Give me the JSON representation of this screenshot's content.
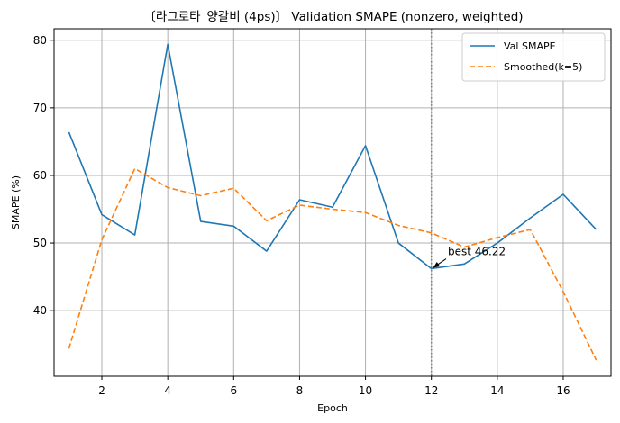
{
  "chart_data": {
    "type": "line",
    "title": "〔라그로타_양갈비 (4ps)〕 Validation SMAPE (nonzero, weighted)",
    "xlabel": "Epoch",
    "ylabel": "SMAPE (%)",
    "xlim": [
      0.55,
      17.45
    ],
    "ylim": [
      30.3,
      81.7
    ],
    "xticks": [
      2,
      4,
      6,
      8,
      10,
      12,
      14,
      16
    ],
    "yticks": [
      40,
      50,
      60,
      70,
      80
    ],
    "grid": true,
    "legend_position": "top-right",
    "x": [
      1,
      2,
      3,
      4,
      5,
      6,
      7,
      8,
      9,
      10,
      11,
      12,
      13,
      14,
      15,
      16,
      17
    ],
    "series": [
      {
        "name": "Val SMAPE",
        "style": "solid",
        "color": "#1f77b4",
        "values": [
          66.4,
          54.2,
          51.2,
          79.4,
          53.2,
          52.5,
          48.8,
          56.4,
          55.3,
          64.4,
          50.0,
          46.22,
          46.9,
          50.0,
          53.7,
          57.2,
          52.0
        ]
      },
      {
        "name": "Smoothed(k=5)",
        "style": "dashed",
        "color": "#ff7f0e",
        "values": [
          34.4,
          50.5,
          61.0,
          58.2,
          57.0,
          58.1,
          53.3,
          55.6,
          55.0,
          54.5,
          52.6,
          51.5,
          49.4,
          50.8,
          52.0,
          42.8,
          32.7
        ]
      }
    ],
    "vline": {
      "x": 12,
      "style": "dotted",
      "color": "#7f7f7f"
    },
    "annotation": {
      "text": "best 46.22",
      "x": 12,
      "y": 46.22,
      "text_x": 12.5,
      "text_y": 48.2
    }
  }
}
